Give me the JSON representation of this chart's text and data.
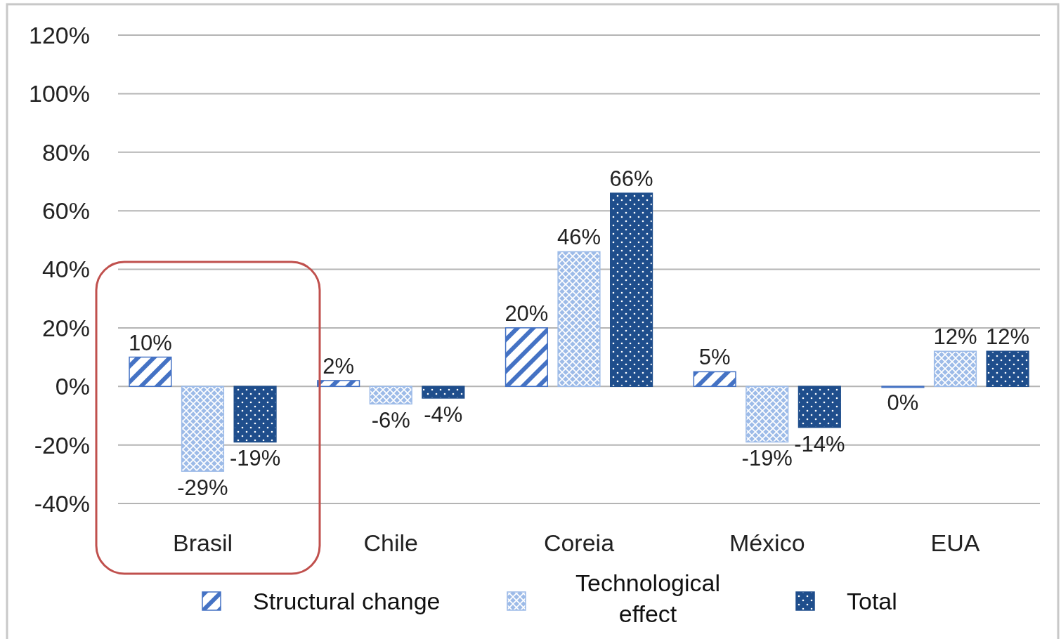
{
  "chart_data": {
    "type": "bar",
    "categories": [
      "Brasil",
      "Chile",
      "Coreia",
      "México",
      "EUA"
    ],
    "series": [
      {
        "name": "Structural change",
        "color": "#4472c4",
        "values": [
          10,
          2,
          20,
          5,
          0
        ],
        "value_labels": [
          "10%",
          "2%",
          "20%",
          "5%",
          "0%"
        ]
      },
      {
        "name": "Technological effect",
        "color": "#9dbbe8",
        "values": [
          -29,
          -6,
          46,
          -19,
          12
        ],
        "value_labels": [
          "-29%",
          "-6%",
          "46%",
          "-19%",
          "12%"
        ]
      },
      {
        "name": "Total",
        "color": "#1f4e8c",
        "values": [
          -19,
          -4,
          66,
          -14,
          12
        ],
        "value_labels": [
          "-19%",
          "-4%",
          "66%",
          "-14%",
          "12%"
        ]
      }
    ],
    "ylim": [
      -40,
      120
    ],
    "yticks": [
      {
        "value": -40,
        "label": "-40%"
      },
      {
        "value": -20,
        "label": "-20%"
      },
      {
        "value": 0,
        "label": "0%"
      },
      {
        "value": 20,
        "label": "20%"
      },
      {
        "value": 40,
        "label": "40%"
      },
      {
        "value": 60,
        "label": "60%"
      },
      {
        "value": 80,
        "label": "80%"
      },
      {
        "value": 100,
        "label": "100%"
      },
      {
        "value": 120,
        "label": "120%"
      }
    ],
    "grid": "y",
    "legend": "bottom"
  }
}
